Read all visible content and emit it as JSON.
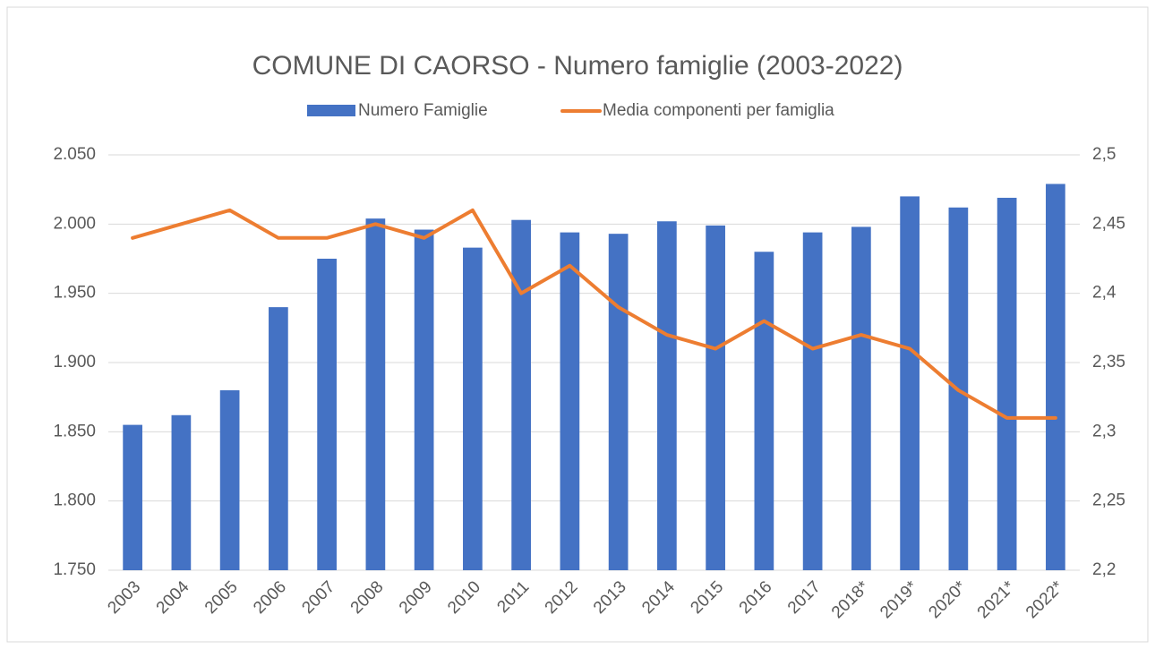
{
  "chart_data": {
    "type": "bar_line",
    "title": "COMUNE DI CAORSO - Numero famiglie (2003-2022)",
    "categories": [
      "2003",
      "2004",
      "2005",
      "2006",
      "2007",
      "2008",
      "2009",
      "2010",
      "2011",
      "2012",
      "2013",
      "2014",
      "2015",
      "2016",
      "2017",
      "2018*",
      "2019*",
      "2020*",
      "2021*",
      "2022*"
    ],
    "series": [
      {
        "name": "Numero Famiglie",
        "type": "bar",
        "color": "#4472c4",
        "axis": "y",
        "values": [
          1855,
          1862,
          1880,
          1940,
          1975,
          2004,
          1996,
          1983,
          2003,
          1994,
          1993,
          2002,
          1999,
          1980,
          1994,
          1998,
          2020,
          2012,
          2019,
          2029
        ]
      },
      {
        "name": "Media componenti per famiglia",
        "type": "line",
        "color": "#ed7d31",
        "axis": "y2",
        "values": [
          2.44,
          2.45,
          2.46,
          2.44,
          2.44,
          2.45,
          2.44,
          2.46,
          2.4,
          2.42,
          2.39,
          2.37,
          2.36,
          2.38,
          2.36,
          2.37,
          2.36,
          2.33,
          2.31,
          2.31
        ]
      }
    ],
    "ylim": [
      1750,
      2050
    ],
    "yticks": [
      {
        "value": 1750,
        "label": "1.750"
      },
      {
        "value": 1800,
        "label": "1.800"
      },
      {
        "value": 1850,
        "label": "1.850"
      },
      {
        "value": 1900,
        "label": "1.900"
      },
      {
        "value": 1950,
        "label": "1.950"
      },
      {
        "value": 2000,
        "label": "2.000"
      },
      {
        "value": 2050,
        "label": "2.050"
      }
    ],
    "y2lim": [
      2.2,
      2.5
    ],
    "y2ticks": [
      {
        "value": 2.2,
        "label": "2,2"
      },
      {
        "value": 2.25,
        "label": "2,25"
      },
      {
        "value": 2.3,
        "label": "2,3"
      },
      {
        "value": 2.35,
        "label": "2,35"
      },
      {
        "value": 2.4,
        "label": "2,4"
      },
      {
        "value": 2.45,
        "label": "2,45"
      },
      {
        "value": 2.5,
        "label": "2,5"
      }
    ],
    "grid": true,
    "legend": "top"
  }
}
